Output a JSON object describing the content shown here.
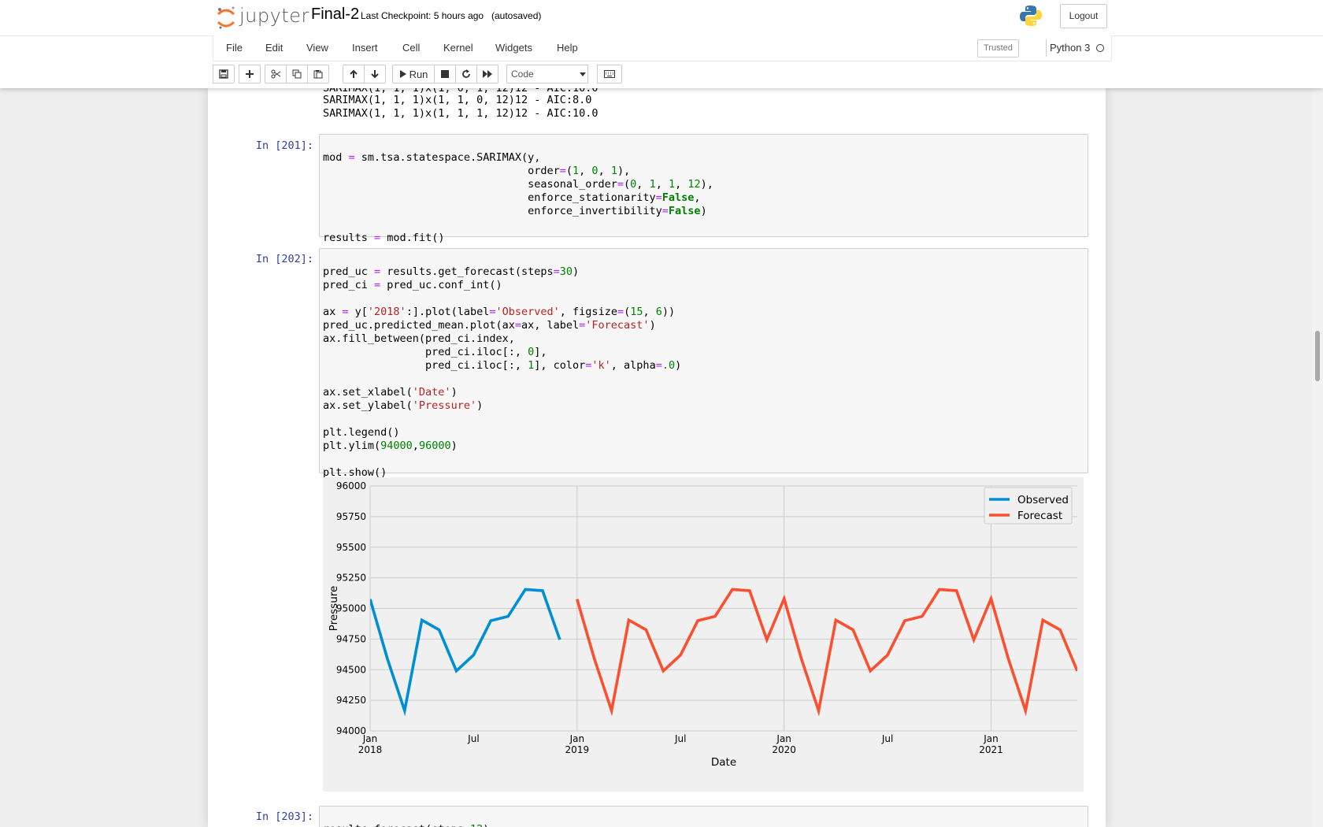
{
  "header": {
    "logo_text": "jupyter",
    "notebook_title": "Final-2",
    "checkpoint": "Last Checkpoint: 5 hours ago",
    "autosave": "(autosaved)",
    "logout": "Logout"
  },
  "menu": {
    "items": [
      "File",
      "Edit",
      "View",
      "Insert",
      "Cell",
      "Kernel",
      "Widgets",
      "Help"
    ],
    "trusted": "Trusted",
    "kernel": "Python 3"
  },
  "toolbar": {
    "run_label": "Run",
    "cell_type": "Code"
  },
  "cells": {
    "prev_output": [
      "SARIMAX(1, 1, 1)x(1, 1, 0, 12)12 - AIC:8.0",
      "SARIMAX(1, 1, 1)x(1, 1, 1, 12)12 - AIC:10.0"
    ],
    "cell201_prompt": "In [201]:",
    "cell202_prompt": "In [202]:",
    "cell203_prompt": "In [203]:"
  },
  "chart_data": {
    "type": "line",
    "title": "",
    "xlabel": "Date",
    "ylabel": "Pressure",
    "ylim": [
      94000,
      96000
    ],
    "yticks": [
      94000,
      94250,
      94500,
      94750,
      95000,
      95250,
      95500,
      95750,
      96000
    ],
    "xticks": [
      {
        "date": "2018-01",
        "label": "Jan",
        "sub": "2018"
      },
      {
        "date": "2018-07",
        "label": "Jul",
        "sub": ""
      },
      {
        "date": "2019-01",
        "label": "Jan",
        "sub": "2019"
      },
      {
        "date": "2019-07",
        "label": "Jul",
        "sub": ""
      },
      {
        "date": "2020-01",
        "label": "Jan",
        "sub": "2020"
      },
      {
        "date": "2020-07",
        "label": "Jul",
        "sub": ""
      },
      {
        "date": "2021-01",
        "label": "Jan",
        "sub": "2021"
      }
    ],
    "xlim": [
      "2018-01",
      "2021-06"
    ],
    "grid": true,
    "legend": "top-right",
    "series": [
      {
        "name": "Observed",
        "color": "#008fd5",
        "x": [
          "2018-01",
          "2018-02",
          "2018-03",
          "2018-04",
          "2018-05",
          "2018-06",
          "2018-07",
          "2018-08",
          "2018-09",
          "2018-10",
          "2018-11",
          "2018-12"
        ],
        "values": [
          95075,
          94590,
          94165,
          94905,
          94825,
          94490,
          94620,
          94900,
          94935,
          95155,
          95145,
          94745
        ]
      },
      {
        "name": "Forecast",
        "color": "#fc4f30",
        "x": [
          "2019-01",
          "2019-02",
          "2019-03",
          "2019-04",
          "2019-05",
          "2019-06",
          "2019-07",
          "2019-08",
          "2019-09",
          "2019-10",
          "2019-11",
          "2019-12",
          "2020-01",
          "2020-02",
          "2020-03",
          "2020-04",
          "2020-05",
          "2020-06",
          "2020-07",
          "2020-08",
          "2020-09",
          "2020-10",
          "2020-11",
          "2020-12",
          "2021-01",
          "2021-02",
          "2021-03",
          "2021-04",
          "2021-05",
          "2021-06"
        ],
        "values": [
          95075,
          94590,
          94165,
          94905,
          94825,
          94490,
          94620,
          94900,
          94935,
          95155,
          95145,
          94745,
          95080,
          94590,
          94165,
          94905,
          94825,
          94490,
          94620,
          94900,
          94935,
          95155,
          95145,
          94745,
          95080,
          94590,
          94165,
          94905,
          94825,
          94490
        ]
      }
    ]
  }
}
